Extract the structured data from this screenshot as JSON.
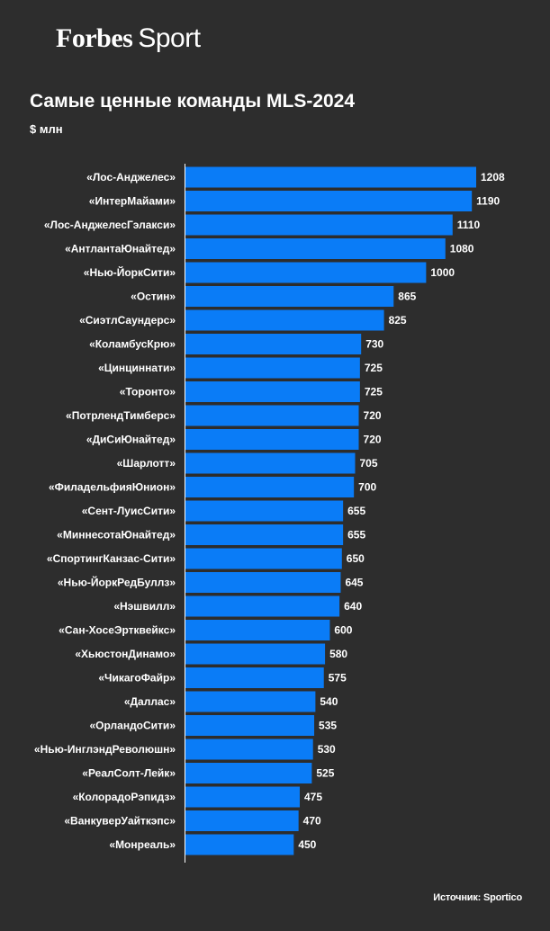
{
  "logo": {
    "brand": "Forbes",
    "section": "Sport"
  },
  "chart_data": {
    "type": "bar",
    "orientation": "horizontal",
    "title": "Самые ценные команды MLS-2024",
    "subtitle": "$ млн",
    "source": "Источник: Sportico",
    "bar_color": "#0a7cf7",
    "categories": [
      "«Лос-Анджелес»",
      "«ИнтерМайами»",
      "«Лос-АнджелесГэлакси»",
      "«АнтлантаЮнайтед»",
      "«Нью-ЙоркСити»",
      "«Остин»",
      "«СиэтлСаундерс»",
      "«КоламбусКрю»",
      "«Цинциннати»",
      "«Торонто»",
      "«ПотрлендТимберс»",
      "«ДиСиЮнайтед»",
      "«Шарлотт»",
      "«ФиладельфияЮнион»",
      "«Сент-ЛуисСити»",
      "«МиннесотаЮнайтед»",
      "«СпортингКанзас-Сити»",
      "«Нью-ЙоркРедБуллз»",
      "«Нэшвилл»",
      "«Сан-ХосеЭртквейкс»",
      "«ХьюстонДинамо»",
      "«ЧикагоФайр»",
      "«Даллас»",
      "«ОрландоСити»",
      "«Нью-ИнглэндРеволюшн»",
      "«РеалСолт-Лейк»",
      "«КолорадоРэпидз»",
      "«ВанкуверУайткэпс»",
      "«Монреаль»"
    ],
    "values": [
      1208,
      1190,
      1110,
      1080,
      1000,
      865,
      825,
      730,
      725,
      725,
      720,
      720,
      705,
      700,
      655,
      655,
      650,
      645,
      640,
      600,
      580,
      575,
      540,
      535,
      530,
      525,
      475,
      470,
      450
    ],
    "xlim": [
      0,
      1208
    ],
    "grid": false,
    "legend": "none"
  }
}
